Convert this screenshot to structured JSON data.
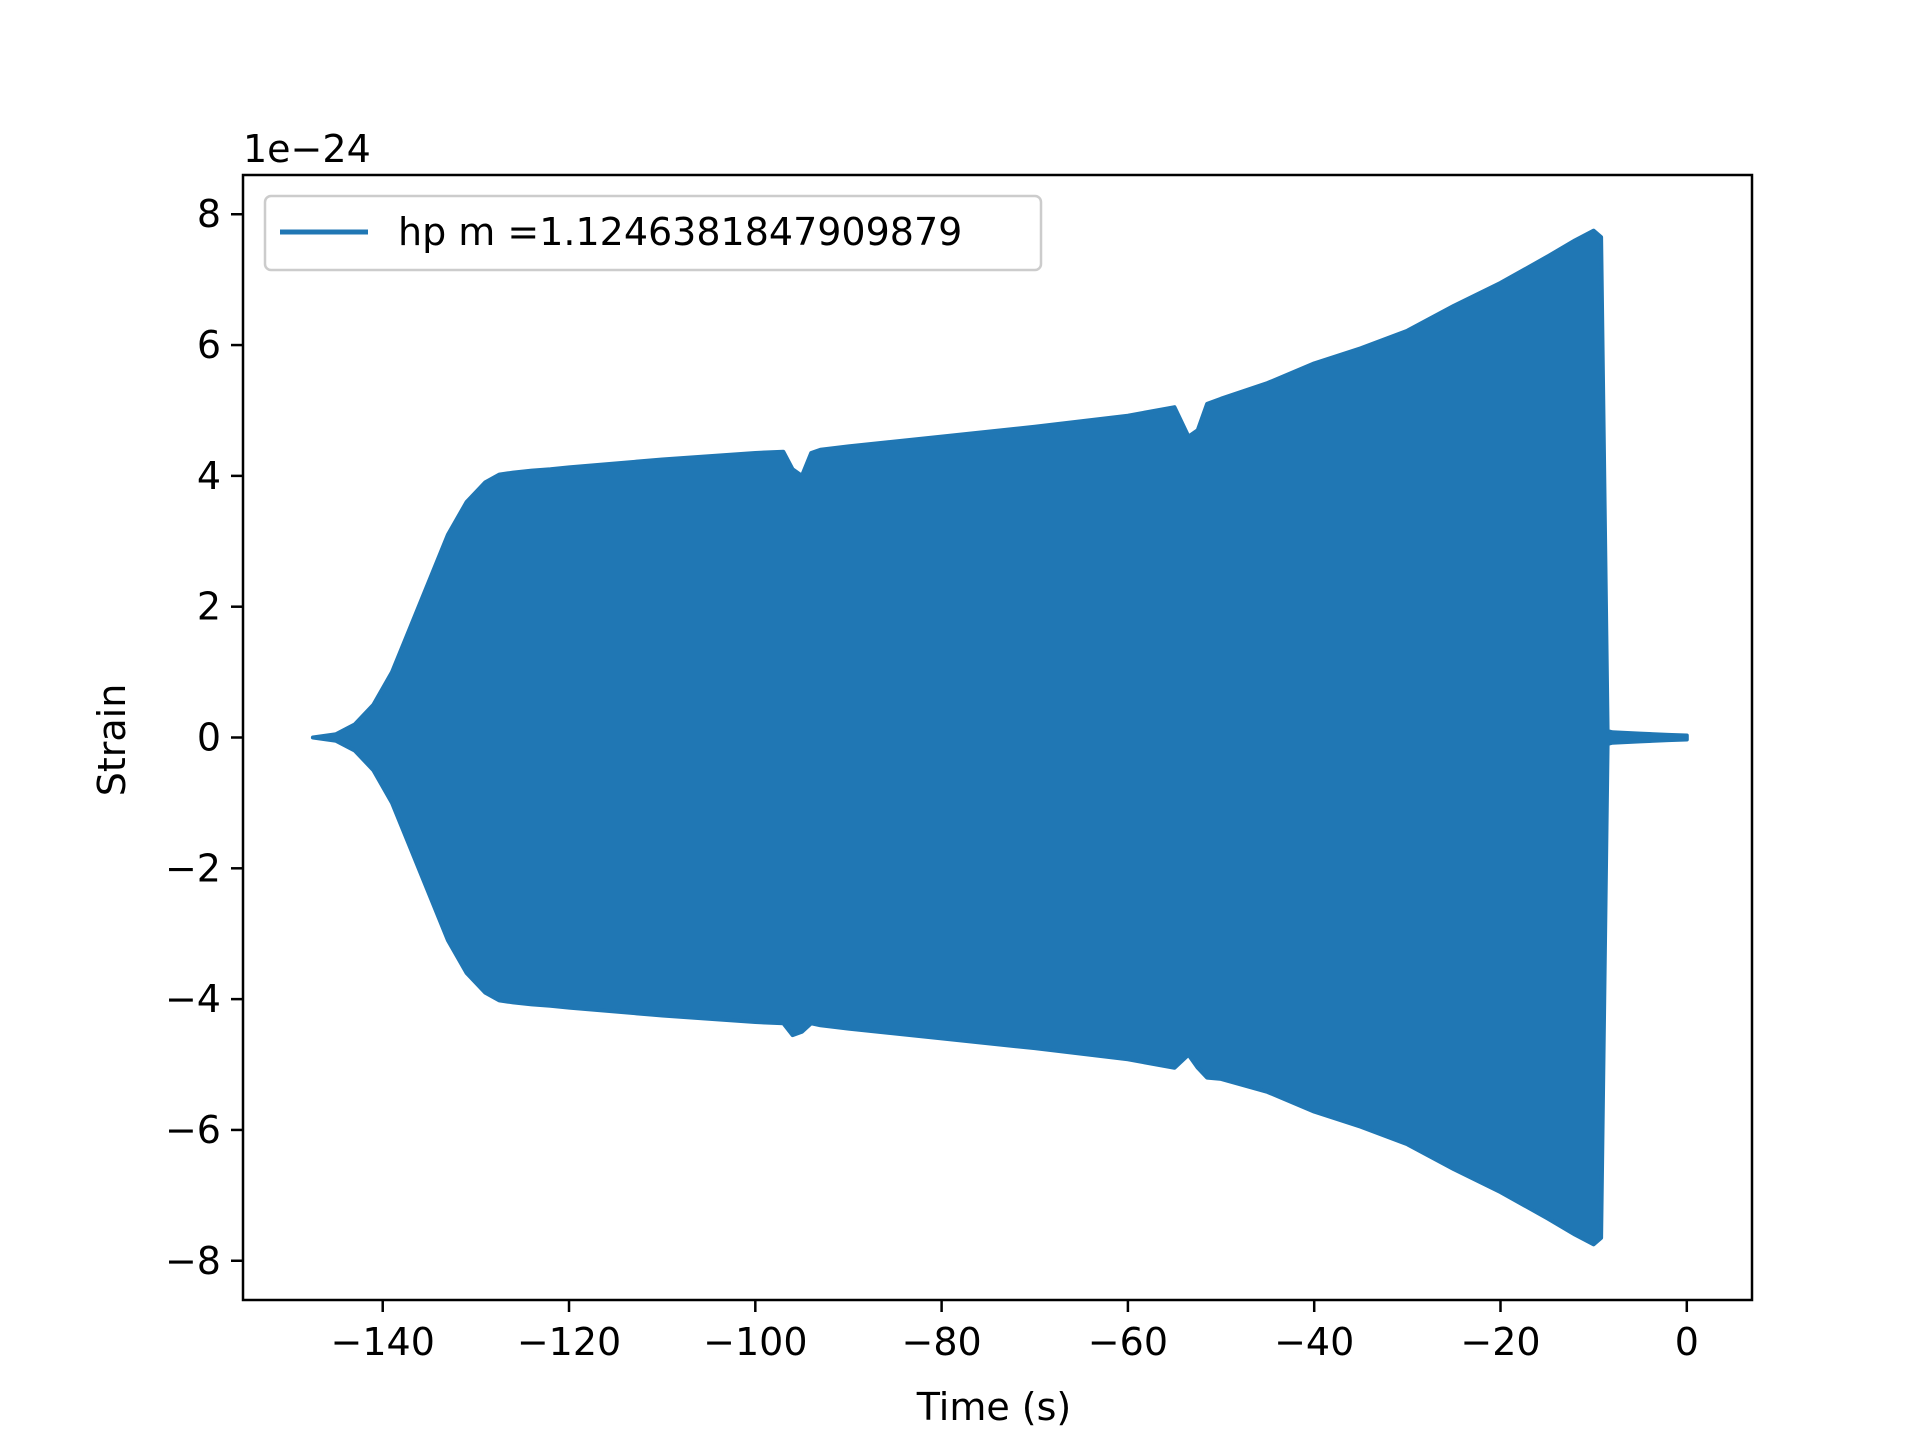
{
  "chart_data": {
    "type": "area",
    "title": "",
    "xlabel": "Time (s)",
    "ylabel": "Strain",
    "y_scale_label": "1e−24",
    "xlim": [
      -155,
      7
    ],
    "ylim": [
      -8.6,
      8.6
    ],
    "x_ticks": [
      -140,
      -120,
      -100,
      -80,
      -60,
      -40,
      -20,
      0
    ],
    "x_tick_labels": [
      "−140",
      "−120",
      "−100",
      "−80",
      "−60",
      "−40",
      "−20",
      "0"
    ],
    "y_ticks": [
      -8,
      -6,
      -4,
      -2,
      0,
      2,
      4,
      6,
      8
    ],
    "y_tick_labels": [
      "−8",
      "−6",
      "−4",
      "−2",
      "0",
      "2",
      "4",
      "6",
      "8"
    ],
    "grid": false,
    "legend_position": "upper-left",
    "color": "#2077b4",
    "series": [
      {
        "name": "hp m =1.1246381847909879",
        "envelope_x": [
          -147.5,
          -145,
          -143,
          -141,
          -139,
          -137,
          -135,
          -133,
          -131,
          -129,
          -127.5,
          -126,
          -124,
          -122,
          -120,
          -110,
          -100,
          -97,
          -96,
          -95,
          -94,
          -93,
          -90,
          -80,
          -70,
          -60,
          -55,
          -53.5,
          -52.5,
          -51.5,
          -50,
          -45,
          -40,
          -35,
          -30,
          -25,
          -20,
          -15,
          -12,
          -10,
          -9.2,
          -8.5,
          -8,
          -5,
          -2,
          0
        ],
        "envelope_upper": [
          0,
          0.05,
          0.2,
          0.5,
          1.0,
          1.7,
          2.4,
          3.1,
          3.6,
          3.9,
          4.02,
          4.05,
          4.08,
          4.1,
          4.13,
          4.25,
          4.35,
          4.37,
          4.1,
          4.0,
          4.35,
          4.4,
          4.45,
          4.6,
          4.75,
          4.92,
          5.05,
          4.6,
          4.7,
          5.1,
          5.18,
          5.42,
          5.72,
          5.95,
          6.22,
          6.6,
          6.95,
          7.35,
          7.6,
          7.75,
          7.65,
          0.1,
          0.08,
          0.06,
          0.04,
          0.03
        ],
        "envelope_lower": [
          0,
          -0.05,
          -0.2,
          -0.5,
          -1.0,
          -1.7,
          -2.4,
          -3.1,
          -3.6,
          -3.9,
          -4.02,
          -4.05,
          -4.08,
          -4.1,
          -4.13,
          -4.25,
          -4.35,
          -4.37,
          -4.55,
          -4.5,
          -4.37,
          -4.4,
          -4.45,
          -4.6,
          -4.75,
          -4.92,
          -5.05,
          -4.85,
          -5.05,
          -5.2,
          -5.22,
          -5.42,
          -5.72,
          -5.95,
          -6.22,
          -6.6,
          -6.95,
          -7.35,
          -7.6,
          -7.75,
          -7.65,
          -0.1,
          -0.08,
          -0.06,
          -0.04,
          -0.03
        ]
      }
    ]
  }
}
